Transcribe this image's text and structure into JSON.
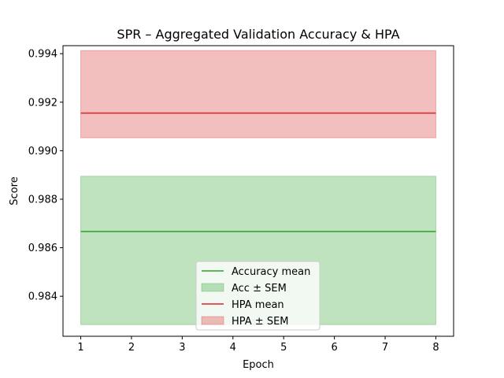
{
  "chart_data": {
    "type": "line",
    "title": "SPR – Aggregated Validation Accuracy & HPA",
    "xlabel": "Epoch",
    "ylabel": "Score",
    "x": [
      1,
      2,
      3,
      4,
      5,
      6,
      7,
      8
    ],
    "xlim": [
      0.65,
      8.35
    ],
    "ylim": [
      0.98235,
      0.99433
    ],
    "x_ticks": [
      "1",
      "2",
      "3",
      "4",
      "5",
      "6",
      "7",
      "8"
    ],
    "y_ticks": [
      "0.984",
      "0.986",
      "0.988",
      "0.990",
      "0.992",
      "0.994"
    ],
    "grid": false,
    "legend_position": "lower center",
    "series": [
      {
        "name": "Accuracy mean",
        "color": "#2ca02c",
        "values": [
          0.98667,
          0.98667,
          0.98667,
          0.98667,
          0.98667,
          0.98667,
          0.98667,
          0.98667
        ],
        "band_name": "Acc ± SEM",
        "lower": [
          0.98283,
          0.98283,
          0.98283,
          0.98283,
          0.98283,
          0.98283,
          0.98283,
          0.98283
        ],
        "upper": [
          0.98895,
          0.98895,
          0.98895,
          0.98895,
          0.98895,
          0.98895,
          0.98895,
          0.98895
        ]
      },
      {
        "name": "HPA mean",
        "color": "#d62728",
        "values": [
          0.99155,
          0.99155,
          0.99155,
          0.99155,
          0.99155,
          0.99155,
          0.99155,
          0.99155
        ],
        "band_name": "HPA ± SEM",
        "lower": [
          0.99053,
          0.99053,
          0.99053,
          0.99053,
          0.99053,
          0.99053,
          0.99053,
          0.99053
        ],
        "upper": [
          0.99413,
          0.99413,
          0.99413,
          0.99413,
          0.99413,
          0.99413,
          0.99413,
          0.99413
        ]
      }
    ]
  }
}
